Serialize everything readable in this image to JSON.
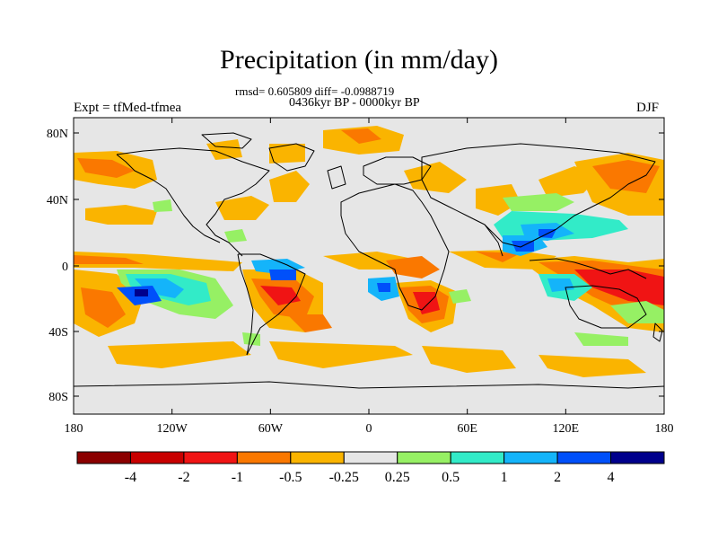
{
  "title": "Precipitation (in mm/day)",
  "stats": "rmsd= 0.605809 diff= -0.0988719",
  "period": "0436kyr BP - 0000kyr BP",
  "experiment": "Expt = tfMed-tfmea",
  "season": "DJF",
  "lat_ticks": [
    "80N",
    "40N",
    "0",
    "40S",
    "80S"
  ],
  "lon_ticks": [
    "180",
    "120W",
    "60W",
    "0",
    "60E",
    "120E",
    "180"
  ],
  "colorbar": {
    "colors": [
      "#8b0000",
      "#c80000",
      "#f01414",
      "#fa7800",
      "#fab400",
      "#e6e6e6",
      "#96f064",
      "#32ebc8",
      "#14b4fa",
      "#0050fa",
      "#00008c"
    ],
    "labels": [
      "-4",
      "-2",
      "-1",
      "-0.5",
      "-0.25",
      "0.25",
      "0.5",
      "1",
      "2",
      "4"
    ]
  }
}
